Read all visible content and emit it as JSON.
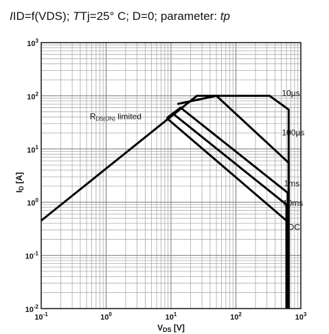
{
  "title": {
    "id_label": "ID=f(VDS); ",
    "tj_label": "Tj=25° C; D=0; parameter: ",
    "tp_label": "tp"
  },
  "chart_data": {
    "type": "line",
    "title": "ID=f(VDS); Tj=25° C; D=0; parameter: tp",
    "xlabel": "VDS [V]",
    "ylabel": "ID [A]",
    "xscale": "log",
    "yscale": "log",
    "xlim": [
      0.1,
      1000
    ],
    "ylim": [
      0.01,
      1000
    ],
    "grid": true,
    "x_ticks": [
      "10^-1",
      "10^0",
      "10^1",
      "10^2",
      "10^3"
    ],
    "y_ticks": [
      "10^-2",
      "10^-1",
      "10^0",
      "10^1",
      "10^2",
      "10^3"
    ],
    "series": [
      {
        "name": "10µs",
        "x": [
          0.1,
          25,
          330,
          650,
          650
        ],
        "y": [
          0.45,
          100,
          100,
          55,
          0.01
        ]
      },
      {
        "name": "100µs",
        "x": [
          12.5,
          50,
          650,
          650
        ],
        "y": [
          70,
          100,
          5.5,
          0.01
        ]
      },
      {
        "name": "1ms",
        "x": [
          8.6,
          14,
          630,
          630
        ],
        "y": [
          38,
          60,
          1.5,
          0.01
        ]
      },
      {
        "name": "10ms",
        "x": [
          8.6,
          11,
          600,
          600
        ],
        "y": [
          38,
          45,
          0.9,
          0.01
        ]
      },
      {
        "name": "DC",
        "x": [
          8.6,
          600,
          600
        ],
        "y": [
          38,
          0.45,
          0.01
        ]
      }
    ],
    "annotations": [
      {
        "text": "RDS(ON) limited",
        "x": 3.5,
        "y": 36
      },
      {
        "text": "10µs",
        "x": 510,
        "y": 100
      },
      {
        "text": "100µs",
        "x": 510,
        "y": 18
      },
      {
        "text": "1ms",
        "x": 550,
        "y": 2.0
      },
      {
        "text": "10ms",
        "x": 530,
        "y": 0.85
      },
      {
        "text": "DC",
        "x": 640,
        "y": 0.3
      }
    ]
  }
}
